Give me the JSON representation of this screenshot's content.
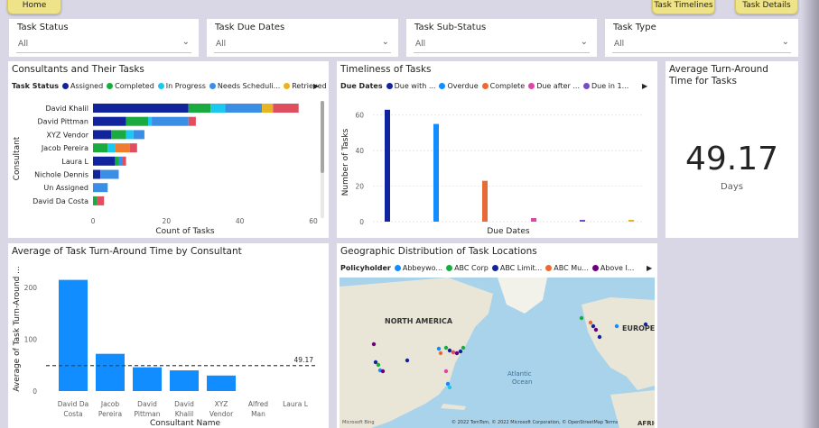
{
  "nav": {
    "home": "Home",
    "timelines": "Task Timelines",
    "details": "Task Details"
  },
  "slicers": [
    {
      "label": "Task Status",
      "value": "All"
    },
    {
      "label": "Task Due Dates",
      "value": "All"
    },
    {
      "label": "Task Sub-Status",
      "value": "All"
    },
    {
      "label": "Task Type",
      "value": "All"
    }
  ],
  "consultants_card": {
    "title": "Consultants and Their Tasks",
    "legend_title": "Task Status",
    "legend": [
      {
        "label": "Assigned",
        "color": "#12239e"
      },
      {
        "label": "Completed",
        "color": "#1aab40"
      },
      {
        "label": "In Progress",
        "color": "#1ac8f0"
      },
      {
        "label": "Needs Scheduli...",
        "color": "#3a8ee6"
      },
      {
        "label": "Retrieved",
        "color": "#e8b422"
      }
    ]
  },
  "timeliness_card": {
    "title": "Timeliness of Tasks",
    "legend_title": "Due Dates",
    "legend": [
      {
        "label": "Due with ...",
        "color": "#12239e"
      },
      {
        "label": "Overdue",
        "color": "#118dff"
      },
      {
        "label": "Complete",
        "color": "#e66c37"
      },
      {
        "label": "Due after ...",
        "color": "#e044a7"
      },
      {
        "label": "Due in 1...",
        "color": "#744ec2"
      }
    ]
  },
  "kpi_card": {
    "title": "Average Turn-Around Time for Tasks",
    "value": "49.17",
    "unit": "Days"
  },
  "turnaround_card": {
    "title": "Average of Task Turn-Around Time by Consultant"
  },
  "geo_card": {
    "title": "Geographic Distribution of Task Locations",
    "legend_title": "Policyholder",
    "legend": [
      {
        "label": "Abbeywo...",
        "color": "#118dff"
      },
      {
        "label": "ABC Corp",
        "color": "#1aab40"
      },
      {
        "label": "ABC Limit...",
        "color": "#12239e"
      },
      {
        "label": "ABC Mu...",
        "color": "#e66c37"
      },
      {
        "label": "Above I...",
        "color": "#6b007b"
      }
    ],
    "map_labels": {
      "na": "NORTH AMERICA",
      "europe": "EUROPE",
      "ocean1": "Atlantic",
      "ocean2": "Ocean",
      "africa": "AFRICA"
    },
    "attribution": "© 2022 TomTom, © 2022 Microsoft Corporation, © OpenStreetMap  Terms",
    "bing": "Microsoft Bing"
  },
  "chart_data": [
    {
      "type": "bar",
      "orientation": "horizontal",
      "stacked": true,
      "title": "Consultants and Their Tasks",
      "xlabel": "Count of Tasks",
      "ylabel": "Consultant",
      "xlim": [
        0,
        60
      ],
      "xticks": [
        0,
        20,
        40,
        60
      ],
      "categories": [
        "David Khalil",
        "David Pittman",
        "XYZ Vendor",
        "Jacob Pereira",
        "Laura L",
        "Nichole Dennis",
        "Un Assigned",
        "David Da Costa"
      ],
      "series": [
        {
          "name": "Assigned",
          "color": "#12239e",
          "values": [
            26,
            9,
            5,
            0,
            6,
            2,
            0,
            0
          ]
        },
        {
          "name": "Completed",
          "color": "#1aab40",
          "values": [
            6,
            6,
            4,
            4,
            1,
            0,
            0,
            1
          ]
        },
        {
          "name": "In Progress",
          "color": "#1ac8f0",
          "values": [
            4,
            1,
            2,
            2,
            0,
            0,
            0,
            0
          ]
        },
        {
          "name": "Needs Scheduli...",
          "color": "#3a8ee6",
          "values": [
            10,
            10,
            3,
            0,
            1,
            5,
            4,
            0
          ]
        },
        {
          "name": "Retrieved",
          "color": "#e8b422",
          "values": [
            3,
            0,
            0,
            0,
            0,
            0,
            0,
            0
          ]
        },
        {
          "name": "",
          "color": "#ef7d30",
          "values": [
            0,
            0,
            0,
            4,
            0,
            0,
            0,
            0
          ]
        },
        {
          "name": "",
          "color": "#e04f5f",
          "values": [
            7,
            2,
            0,
            2,
            1,
            0,
            0,
            2
          ]
        }
      ]
    },
    {
      "type": "bar",
      "title": "Timeliness of Tasks",
      "xlabel": "Due Dates",
      "ylabel": "Number of Tasks",
      "ylim": [
        0,
        70
      ],
      "yticks": [
        0,
        20,
        40,
        60
      ],
      "series": [
        {
          "name": "Due with ...",
          "color": "#12239e",
          "value": 63
        },
        {
          "name": "Overdue",
          "color": "#118dff",
          "value": 55
        },
        {
          "name": "Complete",
          "color": "#e66c37",
          "value": 23
        },
        {
          "name": "Due after ...",
          "color": "#e044a7",
          "value": 2
        },
        {
          "name": "Due in 1...",
          "color": "#744ec2",
          "value": 1
        },
        {
          "name": "",
          "color": "#e8b422",
          "value": 1
        }
      ]
    },
    {
      "type": "bar",
      "title": "Average of Task Turn-Around Time by Consultant",
      "xlabel": "Consultant Name",
      "ylabel": "Average of Task Turn-Around ...",
      "ylim": [
        0,
        230
      ],
      "yticks": [
        0,
        100,
        200
      ],
      "average_line": 49.17,
      "average_label": "49.17",
      "categories": [
        "David Da Costa",
        "Jacob Pereira",
        "David Pittman",
        "David Khalil",
        "XYZ Vendor",
        "Alfred Man",
        "Laura L"
      ],
      "category_lines": [
        [
          "David Da",
          "Costa"
        ],
        [
          "Jacob",
          "Pereira"
        ],
        [
          "David",
          "Pittman"
        ],
        [
          "David",
          "Khalil"
        ],
        [
          "XYZ",
          "Vendor"
        ],
        [
          "Alfred",
          "Man"
        ],
        [
          "Laura L",
          ""
        ]
      ],
      "values": [
        215,
        72,
        46,
        40,
        30,
        0,
        0
      ],
      "color": "#118dff"
    }
  ]
}
